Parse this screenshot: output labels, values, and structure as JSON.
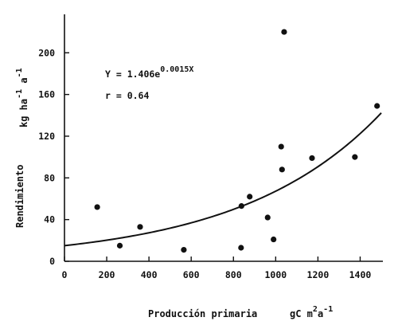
{
  "chart_data": {
    "type": "scatter",
    "xlabel": "Producción primaria",
    "xunit": {
      "base": "gC m",
      "sup1": "2",
      "mid": "a",
      "sup2": "-1"
    },
    "ylabel": "Rendimiento",
    "yunit": {
      "base1": "kg ha",
      "sup1": "-1",
      "base2": " a",
      "sup2": "-1"
    },
    "xlim": [
      0,
      1500
    ],
    "ylim": [
      0,
      230
    ],
    "x_ticks": [
      "0",
      "200",
      "400",
      "600",
      "800",
      "1000",
      "1200",
      "1400"
    ],
    "x_tick_values": [
      0,
      200,
      400,
      600,
      800,
      1000,
      1200,
      1400
    ],
    "y_ticks": [
      "0",
      "40",
      "80",
      "120",
      "160",
      "200"
    ],
    "y_tick_values": [
      0,
      40,
      80,
      120,
      160,
      200
    ],
    "points": [
      {
        "x": 155,
        "y": 52
      },
      {
        "x": 262,
        "y": 15
      },
      {
        "x": 358,
        "y": 33
      },
      {
        "x": 565,
        "y": 11
      },
      {
        "x": 836,
        "y": 13
      },
      {
        "x": 838,
        "y": 53
      },
      {
        "x": 877,
        "y": 62
      },
      {
        "x": 962,
        "y": 42
      },
      {
        "x": 990,
        "y": 21
      },
      {
        "x": 1026,
        "y": 110
      },
      {
        "x": 1030,
        "y": 88
      },
      {
        "x": 1040,
        "y": 220
      },
      {
        "x": 1172,
        "y": 99
      },
      {
        "x": 1375,
        "y": 100
      },
      {
        "x": 1480,
        "y": 149
      }
    ],
    "fit": {
      "a": 1.406,
      "b": 0.0015,
      "x_start": 0,
      "x_end": 1500
    },
    "annotations": {
      "equation_prefix": "Y = 1.406e",
      "equation_exponent": "0.0015X",
      "r_text": "r = 0.64"
    }
  }
}
